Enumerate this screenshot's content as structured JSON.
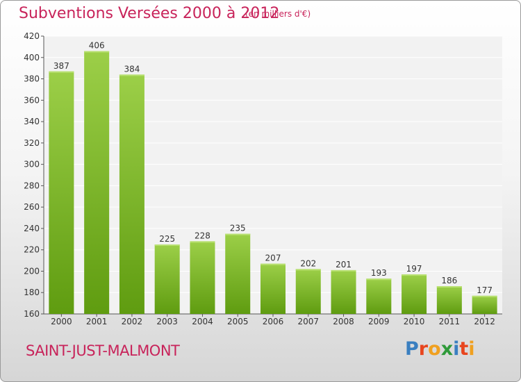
{
  "header": {
    "title": "Subventions Versées 2000 à 2012",
    "unit": "(en milliers d'€)"
  },
  "footer": {
    "commune": "SAINT-JUST-MALMONT",
    "logo_text": "Proxiti"
  },
  "colors": {
    "title": "#c8235a",
    "bar_top": "#9ccf48",
    "bar_bottom": "#5f9c10",
    "logo_letters": [
      "#3a7fc0",
      "#e8451e",
      "#f0a020",
      "#2f9a3a",
      "#3a7fc0",
      "#e8451e",
      "#f0a020"
    ]
  },
  "chart_data": {
    "type": "bar",
    "title": "Subventions Versées 2000 à 2012",
    "categories": [
      "2000",
      "2001",
      "2002",
      "2003",
      "2004",
      "2005",
      "2006",
      "2007",
      "2008",
      "2009",
      "2010",
      "2011",
      "2012"
    ],
    "values": [
      387,
      406,
      384,
      225,
      228,
      235,
      207,
      202,
      201,
      193,
      197,
      186,
      177
    ],
    "ylim": [
      160,
      420
    ],
    "yticks": [
      160,
      180,
      200,
      220,
      240,
      260,
      280,
      300,
      320,
      340,
      360,
      380,
      400,
      420
    ],
    "grid": true,
    "data_labels": true,
    "xlabel": "",
    "ylabel": ""
  }
}
